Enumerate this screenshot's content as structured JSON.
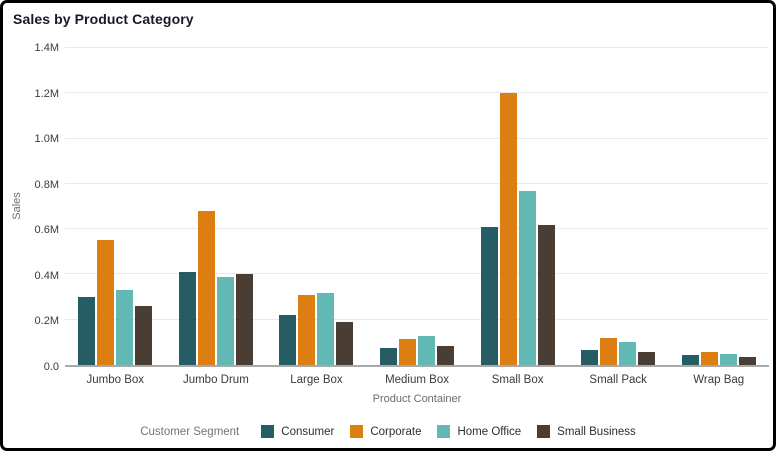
{
  "chart_data": {
    "type": "bar",
    "title": "Sales by Product Category",
    "xlabel": "Product Container",
    "ylabel": "Sales",
    "legend_title": "Customer Segment",
    "legend_position": "bottom",
    "grid": true,
    "ylim": [
      0,
      1.4
    ],
    "y_unit": "M",
    "y_ticks": [
      0,
      0.2,
      0.4,
      0.6,
      0.8,
      1.0,
      1.2,
      1.4
    ],
    "y_tick_labels": [
      "0.0",
      "0.2M",
      "0.4M",
      "0.6M",
      "0.8M",
      "1.0M",
      "1.2M",
      "1.4M"
    ],
    "categories": [
      "Jumbo Box",
      "Jumbo Drum",
      "Large Box",
      "Medium Box",
      "Small Box",
      "Small Pack",
      "Wrap Bag"
    ],
    "series": [
      {
        "name": "Consumer",
        "color": "#265C63",
        "values": [
          0.3,
          0.41,
          0.22,
          0.075,
          0.61,
          0.065,
          0.045
        ]
      },
      {
        "name": "Corporate",
        "color": "#DD7E13",
        "values": [
          0.55,
          0.68,
          0.31,
          0.115,
          1.2,
          0.12,
          0.057
        ]
      },
      {
        "name": "Home Office",
        "color": "#62B8B2",
        "values": [
          0.33,
          0.39,
          0.32,
          0.13,
          0.77,
          0.1,
          0.05
        ]
      },
      {
        "name": "Small Business",
        "color": "#4A3D33",
        "values": [
          0.26,
          0.4,
          0.19,
          0.085,
          0.62,
          0.057,
          0.037
        ]
      }
    ],
    "colors": {
      "background": "#ffffff",
      "frame_border": "#000000",
      "gridline": "#e8e8ed",
      "axis_line": "#a9a9a9",
      "title_text": "#181828",
      "tick_text": "#3a3a42",
      "muted_text": "#6f6a64"
    }
  }
}
